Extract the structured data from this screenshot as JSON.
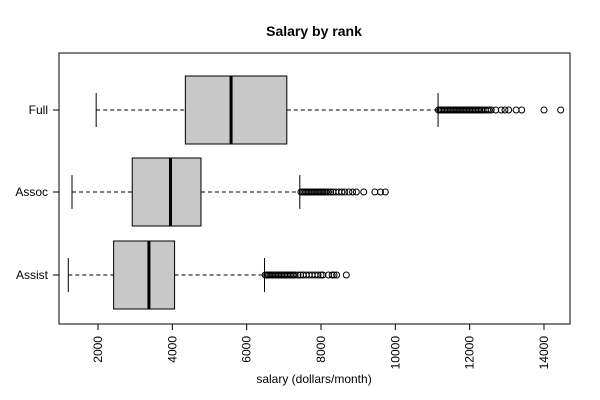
{
  "chart_data": {
    "type": "boxplot",
    "orientation": "horizontal",
    "title": "Salary by rank",
    "xlabel": "salary (dollars/month)",
    "ylabel": "",
    "xlim": [
      950,
      14700
    ],
    "xticks": [
      2000,
      4000,
      6000,
      8000,
      10000,
      12000,
      14000
    ],
    "box_color": "#c8c8c8",
    "categories": [
      "Full",
      "Assoc",
      "Assist"
    ],
    "series": [
      {
        "category": "Full",
        "whisker_low": 1950,
        "q1": 4350,
        "median": 5580,
        "q3": 7080,
        "whisker_high": 11150,
        "outliers": [
          11160,
          11200,
          11240,
          11280,
          11320,
          11360,
          11400,
          11440,
          11480,
          11520,
          11560,
          11600,
          11640,
          11680,
          11720,
          11760,
          11800,
          11840,
          11880,
          11920,
          11960,
          12000,
          12040,
          12080,
          12120,
          12160,
          12200,
          12240,
          12280,
          12320,
          12360,
          12420,
          12480,
          12520,
          12580,
          12700,
          12850,
          12950,
          13050,
          13250,
          13400,
          14000,
          14450
        ]
      },
      {
        "category": "Assoc",
        "whisker_low": 1300,
        "q1": 2920,
        "median": 3950,
        "q3": 4770,
        "whisker_high": 7430,
        "outliers": [
          7460,
          7500,
          7540,
          7580,
          7620,
          7660,
          7700,
          7740,
          7780,
          7820,
          7860,
          7900,
          7940,
          7980,
          8020,
          8060,
          8100,
          8140,
          8200,
          8260,
          8320,
          8400,
          8480,
          8560,
          8640,
          8750,
          8850,
          8950,
          9150,
          9450,
          9600,
          9730
        ]
      },
      {
        "category": "Assist",
        "whisker_low": 1200,
        "q1": 2420,
        "median": 3370,
        "q3": 4060,
        "whisker_high": 6480,
        "outliers": [
          6500,
          6540,
          6580,
          6620,
          6660,
          6700,
          6740,
          6780,
          6820,
          6860,
          6900,
          6940,
          6980,
          7020,
          7060,
          7100,
          7140,
          7180,
          7220,
          7260,
          7300,
          7380,
          7450,
          7520,
          7600,
          7680,
          7760,
          7840,
          7920,
          8000,
          8050,
          8200,
          8300,
          8350,
          8420,
          8680
        ]
      }
    ]
  }
}
